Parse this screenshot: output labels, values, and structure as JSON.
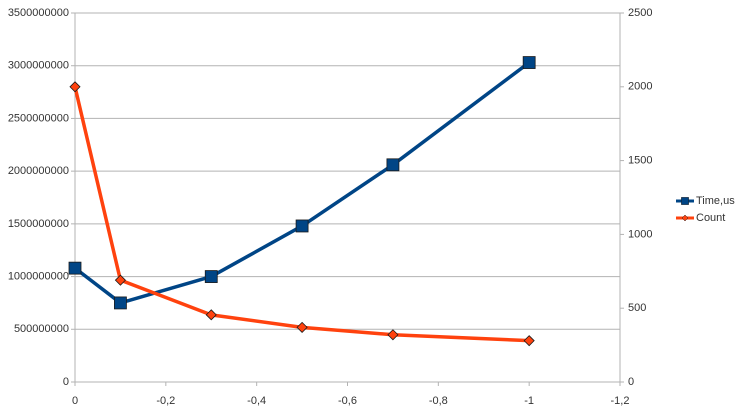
{
  "chart_data": {
    "type": "line",
    "x": [
      0,
      -0.1,
      -0.3,
      -0.5,
      -0.7,
      -1
    ],
    "xlim": [
      0,
      -1.2
    ],
    "xticks": [
      0,
      {
        "value": -0.2,
        "label": "-0,2"
      },
      {
        "value": -0.4,
        "label": "-0,4"
      },
      {
        "value": -0.6,
        "label": "-0,6"
      },
      {
        "value": -0.8,
        "label": "-0,8"
      },
      -1,
      {
        "value": -1.2,
        "label": "-1,2"
      }
    ],
    "ylim": [
      0,
      3500000000
    ],
    "yticks": [
      0,
      500000000,
      1000000000,
      1500000000,
      2000000000,
      2500000000,
      3000000000,
      3500000000
    ],
    "y2lim": [
      0,
      2500
    ],
    "y2ticks": [
      0,
      500,
      1000,
      1500,
      2000,
      2500
    ],
    "grid": true,
    "legend": "right",
    "series": [
      {
        "name": "Time,us",
        "color": "#004586",
        "marker": "square",
        "values": [
          1080000000,
          750000000,
          1000000000,
          1480000000,
          2060000000,
          3030000000
        ]
      },
      {
        "name": "Count",
        "color": "#ff420e",
        "marker": "diamond",
        "axis": "y2",
        "values": [
          2000,
          690,
          455,
          370,
          320,
          280
        ]
      }
    ]
  }
}
